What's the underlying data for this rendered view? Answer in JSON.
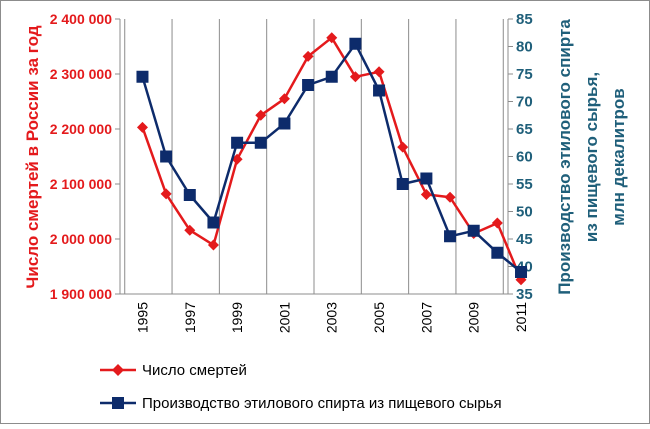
{
  "chart_data": {
    "type": "line",
    "x": [
      1995,
      1996,
      1997,
      1998,
      1999,
      2000,
      2001,
      2002,
      2003,
      2004,
      2005,
      2006,
      2007,
      2008,
      2009,
      2010,
      2011
    ],
    "x_tick_labels": [
      "1995",
      "1997",
      "1999",
      "2001",
      "2003",
      "2005",
      "2007",
      "2009",
      "2011"
    ],
    "y_left": {
      "label": "Число смертей в России за год",
      "ylim": [
        1900000,
        2400000
      ],
      "tick_labels": [
        "1 900 000",
        "2 000 000",
        "2 100 000",
        "2 200 000",
        "2 300 000",
        "2 400 000"
      ],
      "tick_values": [
        1900000,
        2000000,
        2100000,
        2200000,
        2300000,
        2400000
      ]
    },
    "y_right": {
      "label_line1": "Производство этилового спирта",
      "label_line2": "из пищевого сырья,",
      "label_line3": "млн декалитров",
      "ylim": [
        35,
        85
      ],
      "tick_labels": [
        "35",
        "40",
        "45",
        "50",
        "55",
        "60",
        "65",
        "70",
        "75",
        "80",
        "85"
      ],
      "tick_values": [
        35,
        40,
        45,
        50,
        55,
        60,
        65,
        70,
        75,
        80,
        85
      ]
    },
    "series": [
      {
        "name": "Число смертей",
        "axis": "left",
        "color": "#e41a1c",
        "marker": "diamond",
        "values": [
          2203000,
          2082000,
          2016000,
          1989000,
          2145000,
          2225000,
          2255000,
          2332000,
          2366000,
          2295000,
          2304000,
          2167000,
          2081000,
          2076000,
          2010000,
          2029000,
          1926000
        ]
      },
      {
        "name": "Производство этилового спирта из пищевого сырья",
        "axis": "right",
        "color": "#0d2b6b",
        "marker": "square",
        "values": [
          74.5,
          60,
          53,
          48,
          62.5,
          62.5,
          66,
          73,
          74.5,
          80.5,
          72,
          55,
          56,
          45.5,
          46.5,
          42.5,
          39
        ]
      }
    ],
    "grid": "vertical",
    "legend_position": "bottom"
  }
}
